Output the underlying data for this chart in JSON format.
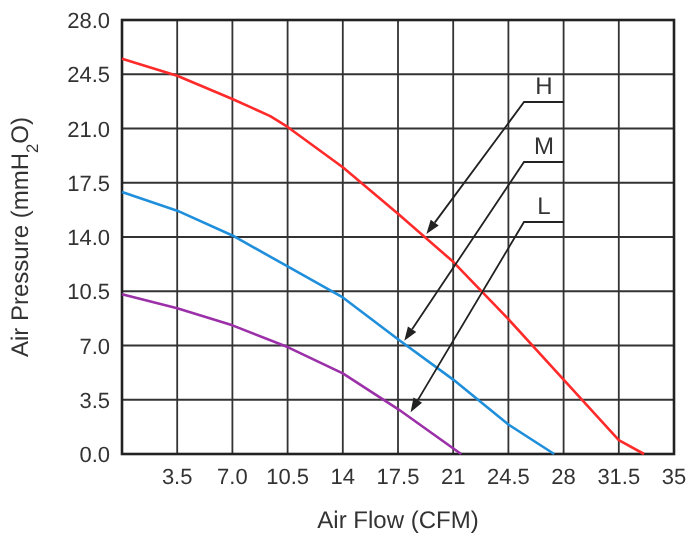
{
  "chart_data": {
    "type": "line",
    "xlabel": "Air Flow (CFM)",
    "ylabel": "Air Pressure (mmH$_{2}$O)",
    "xlim": [
      0,
      35
    ],
    "ylim": [
      0,
      28
    ],
    "xticks": [
      3.5,
      {
        "value": 7,
        "label": "7.0"
      },
      10.5,
      14,
      17.5,
      21,
      24.5,
      28,
      31.5,
      35
    ],
    "yticks": [
      {
        "value": 0,
        "label": "0.0"
      },
      3.5,
      {
        "value": 7,
        "label": "7.0"
      },
      10.5,
      {
        "value": 14,
        "label": "14.0"
      },
      17.5,
      {
        "value": 21,
        "label": "21.0"
      },
      24.5,
      {
        "value": 28,
        "label": "28.0"
      }
    ],
    "grid": true,
    "marker": "none",
    "line_style": "solid",
    "series": [
      {
        "color": "#ff2a2a",
        "x": [
          0,
          3.5,
          7,
          9.4,
          10.5,
          14,
          17.5,
          21,
          24.5,
          28,
          31.5,
          33.1
        ],
        "values": [
          25.5,
          24.4,
          22.9,
          21.8,
          21.1,
          18.5,
          15.5,
          12.4,
          8.7,
          4.8,
          0.9,
          0
        ]
      },
      {
        "color": "#1f8fdc",
        "x": [
          0,
          3.5,
          7,
          10.5,
          14,
          17.5,
          21,
          24.5,
          27.4
        ],
        "values": [
          16.9,
          15.7,
          14.1,
          12.1,
          10.1,
          7.4,
          4.8,
          1.9,
          0
        ]
      },
      {
        "color": "#9b30a8",
        "x": [
          0,
          3.5,
          7,
          10.5,
          14,
          17.5,
          21.5
        ],
        "values": [
          10.3,
          9.4,
          8.3,
          6.9,
          5.2,
          2.9,
          0
        ]
      }
    ],
    "annotations": [
      {
        "text": "H",
        "x": 19.3,
        "y": 14.2
      },
      {
        "text": "M",
        "x": 17.9,
        "y": 7.3
      },
      {
        "text": "L",
        "x": 18.3,
        "y": 2.7
      }
    ]
  }
}
